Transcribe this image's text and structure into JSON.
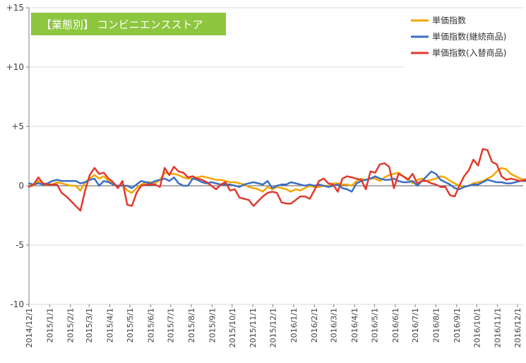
{
  "chart_data": {
    "type": "line",
    "title": "【業態別】 コンビニエンスストア",
    "title_bg": "#8dc63f",
    "title_color": "#ffffff",
    "xlabel": "",
    "ylabel": "",
    "ylim": [
      -10,
      15
    ],
    "y_ticks": [
      {
        "value": 15,
        "label": "+15"
      },
      {
        "value": 10,
        "label": "+10"
      },
      {
        "value": 5,
        "label": "+5"
      },
      {
        "value": 0,
        "label": "0"
      },
      {
        "value": -5,
        "label": "-5"
      },
      {
        "value": -10,
        "label": "-10"
      }
    ],
    "grid": {
      "horizontal": true,
      "vertical": false
    },
    "legend_position": "top-right",
    "x_tick_labels": [
      "2014/12/1",
      "2015/1/1",
      "2015/2/1",
      "2015/3/1",
      "2015/4/1",
      "2015/5/1",
      "2015/6/1",
      "2015/7/1",
      "2015/8/1",
      "2015/9/1",
      "2015/10/1",
      "2015/11/1",
      "2015/12/1",
      "2016/1/1",
      "2016/2/1",
      "2016/3/1",
      "2016/4/1",
      "2016/5/1",
      "2016/6/1",
      "2016/7/1",
      "2016/8/1",
      "2016/9/1",
      "2016/10/1",
      "2016/11/1",
      "2016/12/1"
    ],
    "x": [
      "2014/12/1",
      "2014/12/8",
      "2014/12/15",
      "2014/12/22",
      "2014/12/29",
      "2015/1/5",
      "2015/1/12",
      "2015/1/19",
      "2015/1/26",
      "2015/2/2",
      "2015/2/9",
      "2015/2/16",
      "2015/2/23",
      "2015/3/2",
      "2015/3/9",
      "2015/3/16",
      "2015/3/23",
      "2015/3/30",
      "2015/4/6",
      "2015/4/13",
      "2015/4/20",
      "2015/4/27",
      "2015/5/4",
      "2015/5/11",
      "2015/5/18",
      "2015/5/25",
      "2015/6/1",
      "2015/6/8",
      "2015/6/15",
      "2015/6/22",
      "2015/6/29",
      "2015/7/6",
      "2015/7/13",
      "2015/7/20",
      "2015/7/27",
      "2015/8/3",
      "2015/8/10",
      "2015/8/17",
      "2015/8/24",
      "2015/8/31",
      "2015/9/7",
      "2015/9/14",
      "2015/9/21",
      "2015/9/28",
      "2015/10/5",
      "2015/10/12",
      "2015/10/19",
      "2015/10/26",
      "2015/11/2",
      "2015/11/9",
      "2015/11/16",
      "2015/11/23",
      "2015/11/30",
      "2015/12/7",
      "2015/12/14",
      "2015/12/21",
      "2015/12/28",
      "2016/1/4",
      "2016/1/11",
      "2016/1/18",
      "2016/1/25",
      "2016/2/1",
      "2016/2/8",
      "2016/2/15",
      "2016/2/22",
      "2016/2/29",
      "2016/3/7",
      "2016/3/14",
      "2016/3/21",
      "2016/3/28",
      "2016/4/4",
      "2016/4/11",
      "2016/4/18",
      "2016/4/25",
      "2016/5/2",
      "2016/5/9",
      "2016/5/16",
      "2016/5/23",
      "2016/5/30",
      "2016/6/6",
      "2016/6/13",
      "2016/6/20",
      "2016/6/27",
      "2016/7/4",
      "2016/7/11",
      "2016/7/18",
      "2016/7/25",
      "2016/8/1",
      "2016/8/8",
      "2016/8/15",
      "2016/8/22",
      "2016/8/29",
      "2016/9/5",
      "2016/9/12",
      "2016/9/19",
      "2016/9/26",
      "2016/10/3",
      "2016/10/10",
      "2016/10/17",
      "2016/10/24",
      "2016/10/31",
      "2016/11/7",
      "2016/11/14",
      "2016/11/21",
      "2016/11/28",
      "2016/12/5",
      "2016/12/12",
      "2016/12/19",
      "2016/12/26"
    ],
    "series": [
      {
        "name": "単価指数",
        "color": "#f5a500",
        "values": [
          0.0,
          0.0,
          0.4,
          0.1,
          0.1,
          0.1,
          0.3,
          0.2,
          0.1,
          0.0,
          0.0,
          -0.4,
          0.3,
          0.6,
          0.9,
          0.6,
          0.8,
          0.4,
          0.1,
          -0.1,
          0.1,
          -0.4,
          -0.6,
          -0.2,
          0.1,
          0.3,
          0.3,
          0.2,
          0.5,
          1.1,
          1.0,
          1.0,
          0.9,
          0.7,
          0.6,
          0.6,
          0.7,
          0.8,
          0.7,
          0.6,
          0.5,
          0.5,
          0.4,
          0.3,
          0.3,
          0.2,
          0.1,
          -0.1,
          -0.2,
          -0.3,
          -0.5,
          -0.1,
          -0.3,
          -0.1,
          -0.2,
          -0.3,
          -0.5,
          -0.3,
          -0.4,
          -0.2,
          0.0,
          -0.1,
          -0.1,
          0.0,
          0.0,
          0.2,
          0.2,
          0.1,
          0.1,
          0.0,
          0.4,
          0.6,
          0.5,
          0.6,
          0.6,
          0.4,
          0.7,
          0.9,
          1.0,
          1.1,
          0.8,
          0.6,
          0.2,
          0.5,
          0.6,
          0.4,
          0.5,
          0.6,
          0.8,
          0.7,
          0.4,
          0.2,
          0.0,
          -0.1,
          0.0,
          0.2,
          0.3,
          0.4,
          0.6,
          0.8,
          1.2,
          1.5,
          1.4,
          1.0,
          0.8,
          0.6,
          0.5,
          0.4,
          0.5
        ]
      },
      {
        "name": "単価指数(継続商品)",
        "color": "#3a6fc4",
        "values": [
          0.2,
          0.1,
          0.2,
          0.1,
          0.2,
          0.4,
          0.5,
          0.4,
          0.4,
          0.4,
          0.4,
          0.2,
          0.3,
          0.5,
          0.6,
          0.0,
          0.4,
          0.3,
          0.1,
          0.0,
          0.0,
          0.0,
          -0.2,
          0.1,
          0.4,
          0.3,
          0.2,
          0.4,
          0.5,
          0.6,
          0.4,
          0.7,
          0.2,
          0.0,
          0.0,
          0.6,
          0.5,
          0.3,
          0.2,
          0.3,
          0.2,
          0.1,
          0.1,
          0.1,
          0.0,
          -0.1,
          0.1,
          0.2,
          0.3,
          0.2,
          0.1,
          0.4,
          -0.2,
          0.0,
          0.1,
          0.1,
          0.3,
          0.2,
          0.1,
          0.0,
          0.1,
          0.0,
          0.1,
          0.0,
          -0.1,
          0.0,
          0.1,
          -0.2,
          -0.3,
          -0.5,
          0.2,
          0.4,
          0.5,
          0.6,
          0.8,
          0.6,
          0.5,
          0.5,
          0.6,
          0.4,
          0.3,
          0.3,
          0.4,
          0.0,
          0.4,
          0.8,
          1.2,
          1.0,
          0.5,
          0.3,
          0.1,
          -0.2,
          -0.3,
          -0.1,
          0.0,
          0.1,
          0.1,
          0.3,
          0.5,
          0.4,
          0.3,
          0.3,
          0.2,
          0.2,
          0.3,
          0.4,
          0.4,
          0.4,
          0.5
        ]
      },
      {
        "name": "単価指数(入替商品)",
        "color": "#e03a2e",
        "values": [
          -0.1,
          0.1,
          0.7,
          0.2,
          0.1,
          0.1,
          0.1,
          -0.6,
          -0.9,
          -1.3,
          -1.7,
          -2.1,
          -0.4,
          0.9,
          1.5,
          1.0,
          1.1,
          0.6,
          0.3,
          -0.2,
          0.4,
          -1.6,
          -1.7,
          -0.6,
          0.0,
          0.1,
          0.1,
          0.1,
          -0.1,
          1.5,
          0.9,
          1.6,
          1.2,
          1.1,
          0.7,
          0.8,
          0.6,
          0.5,
          0.3,
          0.0,
          -0.3,
          0.1,
          0.3,
          -0.4,
          -0.3,
          -1.0,
          -1.1,
          -1.2,
          -1.7,
          -1.3,
          -0.9,
          -0.6,
          -0.5,
          -0.6,
          -1.4,
          -1.5,
          -1.5,
          -1.2,
          -0.9,
          -0.9,
          -1.1,
          -0.4,
          0.4,
          0.6,
          0.2,
          0.1,
          -0.5,
          0.6,
          0.8,
          0.7,
          0.6,
          0.5,
          -0.3,
          1.2,
          1.1,
          1.8,
          1.9,
          1.6,
          -0.2,
          1.0,
          0.8,
          0.5,
          1.0,
          0.2,
          0.4,
          0.4,
          0.2,
          0.1,
          -0.1,
          -0.1,
          -0.8,
          -0.9,
          0.0,
          0.8,
          1.3,
          2.2,
          1.7,
          3.1,
          3.0,
          2.0,
          1.8,
          0.8,
          0.5,
          0.6,
          0.5,
          0.4,
          0.5,
          0.7,
          0.8
        ]
      }
    ]
  }
}
